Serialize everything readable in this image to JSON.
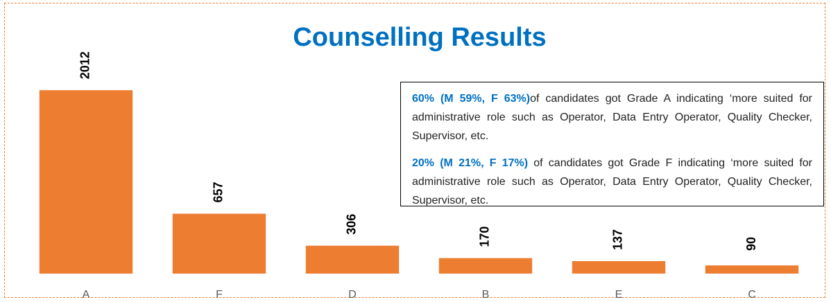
{
  "chart_data": {
    "type": "bar",
    "title": "Counselling Results",
    "categories": [
      "A",
      "F",
      "D",
      "B",
      "E",
      "C"
    ],
    "values": [
      2012,
      657,
      306,
      170,
      137,
      90
    ],
    "color": "#ED7D31",
    "ylim": [
      0,
      2500
    ],
    "annotations": [
      {
        "highlight": "60% (M 59%, F 63%)",
        "text": "of candidates got Grade A indicating ‘more suited for administrative role such as Operator,  Data Entry Operator, Quality Checker, Supervisor, etc."
      },
      {
        "highlight": "20% (M 21%, F 17%)",
        "text": " of candidates got Grade F indicating ‘more suited for administrative role such as Operator,  Data Entry Operator, Quality Checker, Supervisor, etc."
      }
    ]
  }
}
